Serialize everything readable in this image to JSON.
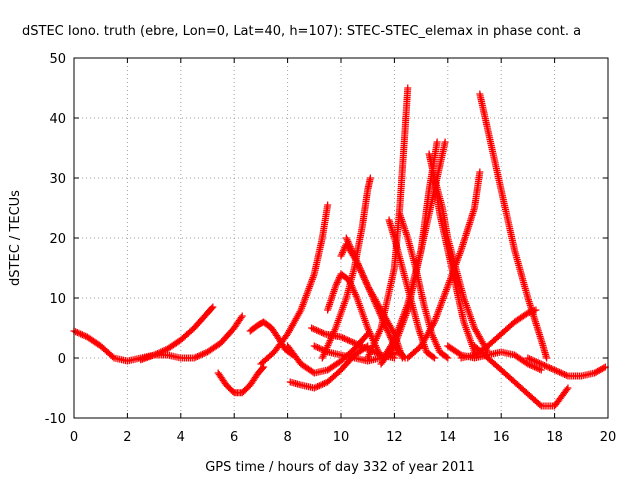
{
  "chart_data": {
    "type": "scatter",
    "title": "dSTEC Iono. truth (ebre, Lon=0, Lat=40, h=107): STEC-STEC_elemax in phase cont. a",
    "xlabel": "GPS time / hours of day 332 of year 2011",
    "ylabel": "dSTEC  / TECUs",
    "xlim": [
      0,
      20
    ],
    "ylim": [
      -10,
      50
    ],
    "x_ticks": [
      0,
      2,
      4,
      6,
      8,
      10,
      12,
      14,
      16,
      18,
      20
    ],
    "y_ticks": [
      -10,
      0,
      10,
      20,
      30,
      40,
      50
    ],
    "grid": true,
    "marker": "+",
    "color": "#ff0000",
    "series": [
      {
        "x": [
          0,
          0.5,
          1,
          1.5,
          2,
          2.5,
          3,
          3.5,
          4,
          4.5,
          5,
          5.2
        ],
        "y": [
          4.5,
          3.5,
          2,
          0,
          -0.5,
          0,
          0.5,
          1.5,
          3,
          5,
          7.5,
          8.5
        ]
      },
      {
        "x": [
          2.5,
          3,
          3.5,
          4,
          4.5,
          5,
          5.5,
          6,
          6.3
        ],
        "y": [
          -0.3,
          0.5,
          0.5,
          0,
          0,
          1,
          2.5,
          5,
          7
        ]
      },
      {
        "x": [
          5.4,
          5.7,
          6,
          6.3,
          6.6,
          6.9,
          7.1
        ],
        "y": [
          -2.5,
          -4.5,
          -5.8,
          -5.8,
          -4.5,
          -2.5,
          -1.5
        ]
      },
      {
        "x": [
          6.6,
          6.9,
          7.1,
          7.4,
          7.7,
          7.9,
          8.2
        ],
        "y": [
          4.5,
          5.5,
          6,
          5,
          3,
          1.5,
          0.5
        ]
      },
      {
        "x": [
          7,
          7.5,
          8,
          8.5,
          9,
          9.3,
          9.5
        ],
        "y": [
          -1,
          1,
          4,
          8,
          14,
          20,
          25.5
        ]
      },
      {
        "x": [
          8.1,
          8.5,
          9,
          9.5,
          10,
          10.5,
          11
        ],
        "y": [
          -4,
          -4.5,
          -5,
          -4,
          -2,
          0.5,
          2
        ]
      },
      {
        "x": [
          8,
          8.5,
          9,
          9.5,
          10,
          10.5,
          11
        ],
        "y": [
          2,
          -1,
          -2.5,
          -2,
          -0.5,
          1.5,
          4
        ]
      },
      {
        "x": [
          8.9,
          9.4,
          10,
          10.5,
          11,
          11.5,
          12
        ],
        "y": [
          5,
          4,
          3.5,
          2.5,
          1.5,
          0.5,
          0
        ]
      },
      {
        "x": [
          9,
          9.5,
          10,
          10.5,
          11,
          11.5,
          12.2
        ],
        "y": [
          2,
          1,
          0.5,
          0,
          -0.5,
          0,
          1
        ]
      },
      {
        "x": [
          9.3,
          9.8,
          10.2,
          10.5,
          10.8,
          11,
          11.1
        ],
        "y": [
          0,
          5,
          10,
          15,
          22,
          28,
          30
        ]
      },
      {
        "x": [
          9.5,
          9.8,
          10,
          10.3,
          10.6,
          11,
          11.5
        ],
        "y": [
          8,
          12,
          14,
          13,
          10,
          5,
          0
        ]
      },
      {
        "x": [
          10,
          10.2,
          10.6,
          11,
          11.5,
          12,
          12.3
        ],
        "y": [
          17,
          19,
          16,
          12,
          8,
          4,
          0
        ]
      },
      {
        "x": [
          10.2,
          10.4,
          10.8,
          11.2,
          11.6,
          12,
          12.4
        ],
        "y": [
          20,
          18,
          14,
          10,
          6,
          2,
          0
        ]
      },
      {
        "x": [
          11,
          11.5,
          12,
          12.2,
          12.4,
          12.5
        ],
        "y": [
          0,
          5,
          15,
          25,
          38,
          45
        ]
      },
      {
        "x": [
          11.8,
          12,
          12.3,
          12.6,
          12.9,
          13.2,
          13.5
        ],
        "y": [
          23,
          20,
          15,
          10,
          5,
          1,
          0
        ]
      },
      {
        "x": [
          12.2,
          12.5,
          12.8,
          13.1,
          13.4,
          13.7,
          14
        ],
        "y": [
          24,
          20,
          15,
          9,
          4,
          1,
          0
        ]
      },
      {
        "x": [
          11.5,
          12,
          12.5,
          13,
          13.3,
          13.6
        ],
        "y": [
          -1,
          2,
          8,
          18,
          28,
          36
        ]
      },
      {
        "x": [
          11.6,
          12,
          12.5,
          13,
          13.5,
          13.9
        ],
        "y": [
          0,
          3,
          9,
          18,
          28,
          36
        ]
      },
      {
        "x": [
          12.5,
          13,
          13.5,
          14,
          14.5,
          15,
          15.2
        ],
        "y": [
          0,
          2,
          6,
          12,
          18,
          25,
          31
        ]
      },
      {
        "x": [
          13.3,
          13.5,
          13.7,
          14,
          14.3,
          14.6,
          15
        ],
        "y": [
          34,
          30,
          24,
          18,
          12,
          6,
          1
        ]
      },
      {
        "x": [
          13.5,
          13.8,
          14,
          14.3,
          14.6,
          15,
          15.5
        ],
        "y": [
          30,
          25,
          20,
          15,
          10,
          5,
          1
        ]
      },
      {
        "x": [
          14,
          14.5,
          15,
          15.5,
          16,
          16.5,
          17,
          17.5
        ],
        "y": [
          2,
          0.5,
          0,
          0.5,
          1,
          0.5,
          -1,
          -2
        ]
      },
      {
        "x": [
          15.2,
          15.5,
          16,
          16.5,
          17,
          17.5,
          17.7
        ],
        "y": [
          44,
          38,
          28,
          18,
          10,
          3,
          0
        ]
      },
      {
        "x": [
          15,
          15.5,
          16,
          16.5,
          17,
          17.5,
          18,
          18.5
        ],
        "y": [
          2,
          0,
          -2,
          -4,
          -6,
          -8,
          -8,
          -5
        ]
      },
      {
        "x": [
          14.5,
          15,
          15.5,
          16,
          16.5,
          17,
          17.3
        ],
        "y": [
          0,
          0.5,
          2,
          4,
          6,
          7.5,
          8
        ]
      },
      {
        "x": [
          17,
          17.5,
          18,
          18.5,
          19,
          19.5,
          19.9
        ],
        "y": [
          0,
          -1,
          -2,
          -3,
          -3,
          -2.5,
          -1.5
        ]
      }
    ]
  }
}
